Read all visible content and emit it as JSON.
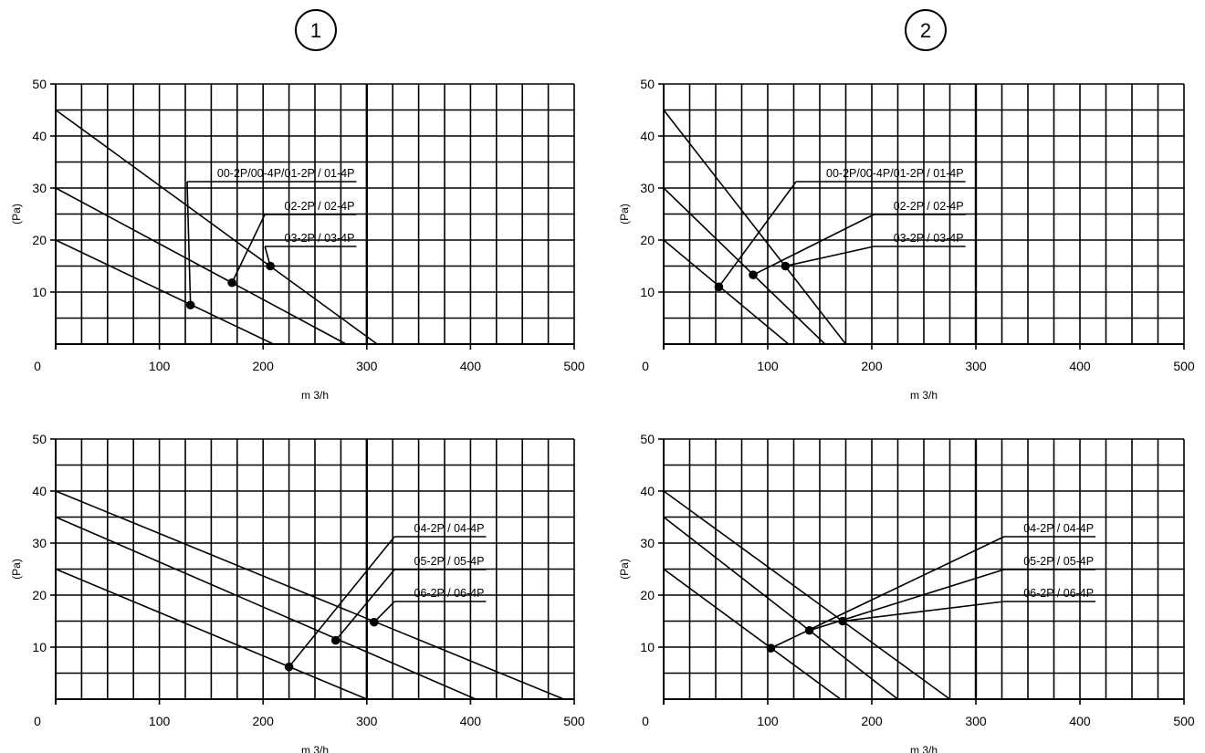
{
  "headers": [
    "1",
    "2"
  ],
  "chart_data": [
    {
      "type": "line",
      "panel_marker": "1",
      "xlabel": "m 3/h",
      "ylabel": "(Pa)",
      "xlim": [
        0,
        500
      ],
      "ylim": [
        0,
        50
      ],
      "x_ticks": [
        0,
        100,
        200,
        300,
        400,
        500
      ],
      "y_ticks": [
        10,
        20,
        30,
        40,
        50
      ],
      "grid": true,
      "series": [
        {
          "name": "00-2P/00-4P/01-2P / 01-4P",
          "x": [
            0,
            210
          ],
          "y": [
            20,
            0
          ],
          "point": [
            130,
            7.5
          ]
        },
        {
          "name": "02-2P / 02-4P",
          "x": [
            0,
            280
          ],
          "y": [
            30,
            0
          ],
          "point": [
            170,
            11.8
          ]
        },
        {
          "name": "03-2P / 03-4P",
          "x": [
            0,
            310
          ],
          "y": [
            45,
            0
          ],
          "point": [
            207,
            15
          ]
        }
      ]
    },
    {
      "type": "line",
      "panel_marker": "2",
      "xlabel": "m 3/h",
      "ylabel": "(Pa)",
      "xlim": [
        0,
        500
      ],
      "ylim": [
        0,
        50
      ],
      "x_ticks": [
        0,
        100,
        200,
        300,
        400,
        500
      ],
      "y_ticks": [
        10,
        20,
        30,
        40,
        50
      ],
      "grid": true,
      "series": [
        {
          "name": "00-2P/00-4P/01-2P / 01-4P",
          "x": [
            0,
            120
          ],
          "y": [
            20,
            0
          ],
          "point": [
            53,
            11
          ]
        },
        {
          "name": "02-2P / 02-4P",
          "x": [
            0,
            155
          ],
          "y": [
            30,
            0
          ],
          "point": [
            86,
            13.3
          ]
        },
        {
          "name": "03-2P / 03-4P",
          "x": [
            0,
            175
          ],
          "y": [
            45,
            0
          ],
          "point": [
            117,
            15
          ]
        }
      ]
    },
    {
      "type": "line",
      "panel_marker": "1",
      "xlabel": "m 3/h",
      "ylabel": "(Pa)",
      "xlim": [
        0,
        500
      ],
      "ylim": [
        0,
        50
      ],
      "x_ticks": [
        0,
        100,
        200,
        300,
        400,
        500
      ],
      "y_ticks": [
        10,
        20,
        30,
        40,
        50
      ],
      "grid": true,
      "series": [
        {
          "name": "04-2P / 04-4P",
          "x": [
            0,
            300
          ],
          "y": [
            25,
            0
          ],
          "point": [
            225,
            6.2
          ]
        },
        {
          "name": "05-2P / 05-4P",
          "x": [
            0,
            405
          ],
          "y": [
            35,
            0
          ],
          "point": [
            270,
            11.3
          ]
        },
        {
          "name": "06-2P / 06-4P",
          "x": [
            0,
            490
          ],
          "y": [
            40,
            0
          ],
          "point": [
            307,
            14.8
          ]
        }
      ]
    },
    {
      "type": "line",
      "panel_marker": "2",
      "xlabel": "m 3/h",
      "ylabel": "(Pa)",
      "xlim": [
        0,
        500
      ],
      "ylim": [
        0,
        50
      ],
      "x_ticks": [
        0,
        100,
        200,
        300,
        400,
        500
      ],
      "y_ticks": [
        10,
        20,
        30,
        40,
        50
      ],
      "grid": true,
      "series": [
        {
          "name": "04-2P / 04-4P",
          "x": [
            0,
            170
          ],
          "y": [
            25,
            0
          ],
          "point": [
            103,
            9.8
          ]
        },
        {
          "name": "05-2P / 05-4P",
          "x": [
            0,
            225
          ],
          "y": [
            35,
            0
          ],
          "point": [
            140,
            13.2
          ]
        },
        {
          "name": "06-2P / 06-4P",
          "x": [
            0,
            275
          ],
          "y": [
            40,
            0
          ],
          "point": [
            172,
            15
          ]
        }
      ]
    }
  ]
}
